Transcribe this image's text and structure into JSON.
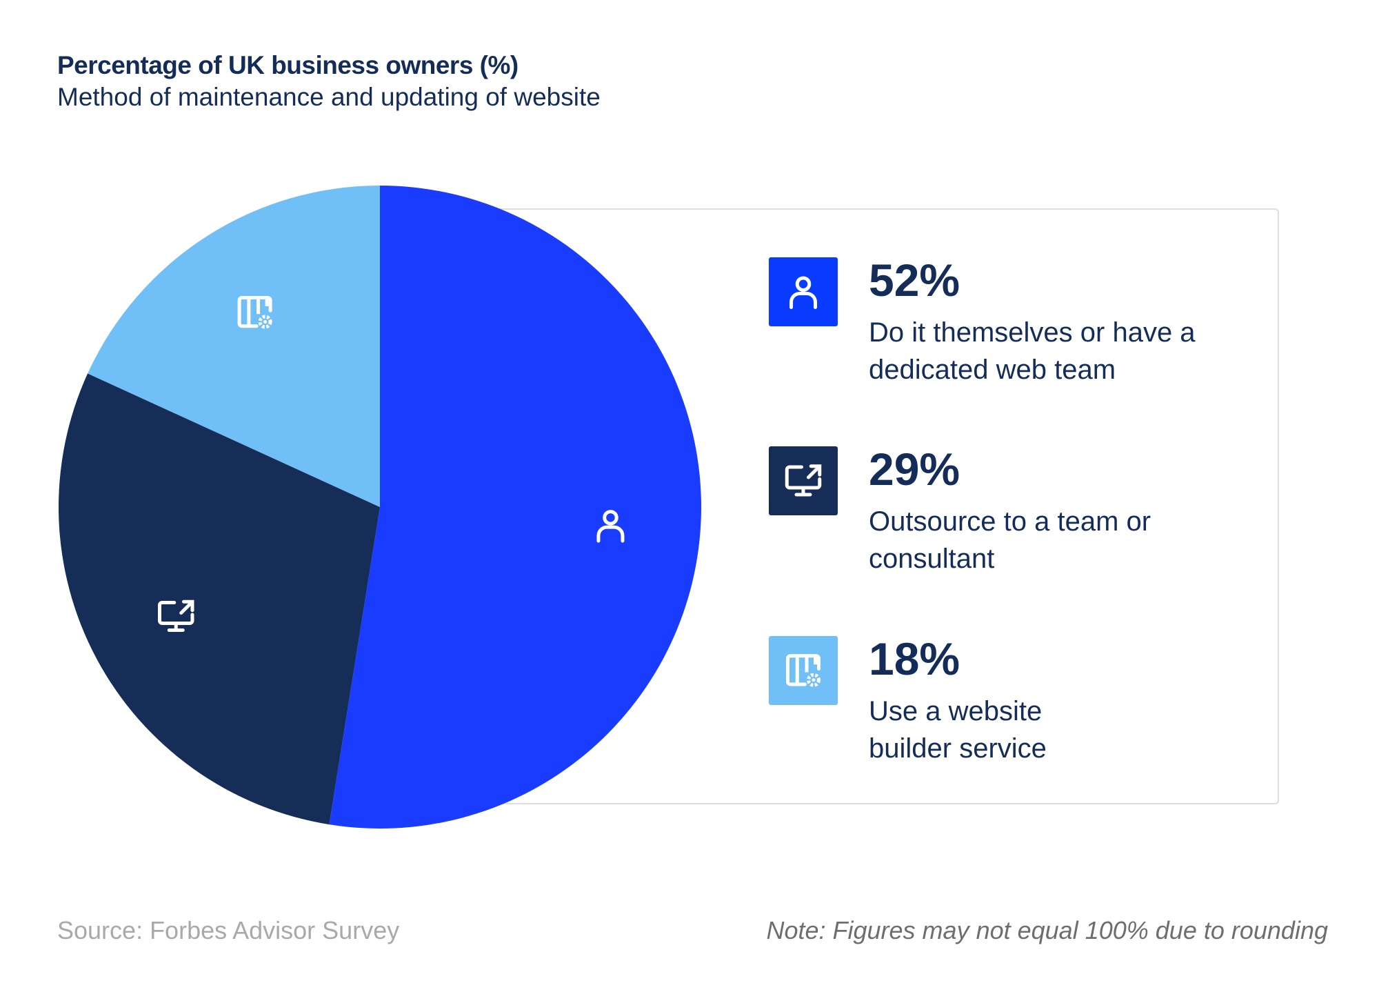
{
  "chart_data": {
    "type": "pie",
    "title": "Percentage of UK business owners (%)",
    "subtitle": "Method of maintenance and updating of website",
    "slices": [
      {
        "label": "Do it themselves or have a dedicated web team",
        "value": 52,
        "value_label": "52%",
        "color": "#1a3cff",
        "legend_color": "#0a3cff",
        "icon": "person-icon"
      },
      {
        "label": "Outsource to a team or consultant",
        "value": 29,
        "value_label": "29%",
        "color": "#152d57",
        "legend_color": "#152d57",
        "icon": "monitor-share-icon"
      },
      {
        "label": "Use a website builder service",
        "value": 18,
        "value_label": "18%",
        "color": "#70bff7",
        "legend_color": "#70bff7",
        "icon": "website-builder-icon"
      }
    ],
    "legend_placement": "right",
    "source": "Source: Forbes Advisor Survey",
    "note": "Note: Figures may not equal 100% due to rounding"
  }
}
